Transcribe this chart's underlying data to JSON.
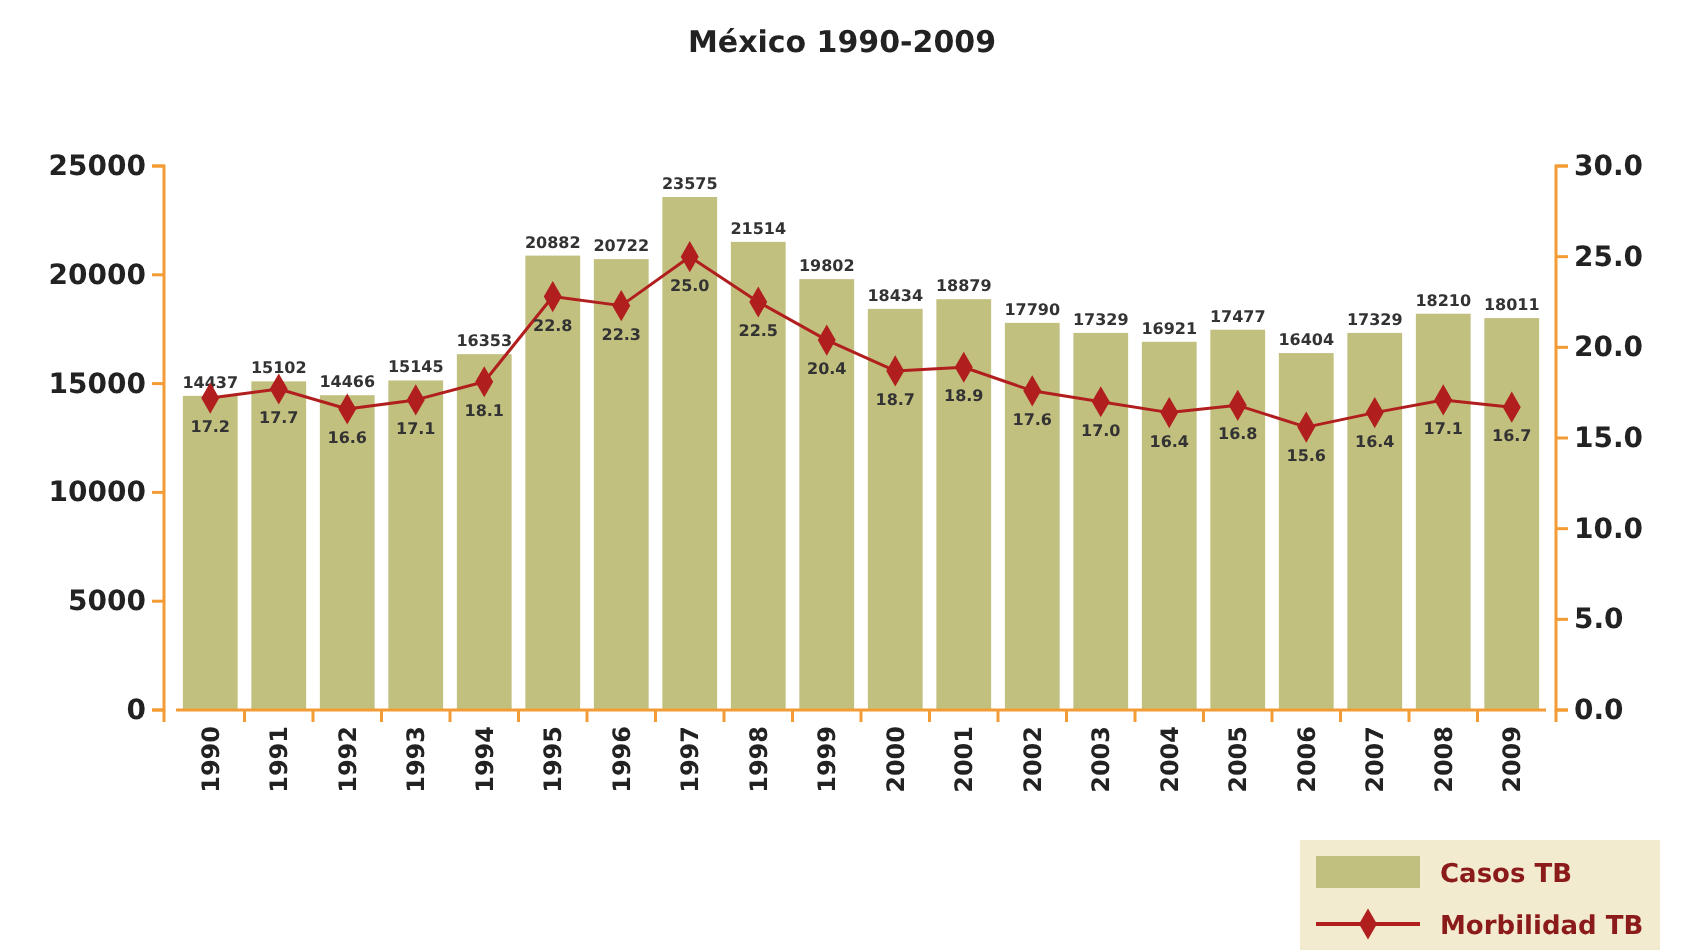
{
  "chart_data": {
    "type": "bar",
    "title": "México 1990-2009",
    "categories": [
      "1990",
      "1991",
      "1992",
      "1993",
      "1994",
      "1995",
      "1996",
      "1997",
      "1998",
      "1999",
      "2000",
      "2001",
      "2002",
      "2003",
      "2004",
      "2005",
      "2006",
      "2007",
      "2008",
      "2009"
    ],
    "series": [
      {
        "name": "Casos TB",
        "color": "#c2c07f",
        "values": [
          14437,
          15102,
          14466,
          15145,
          16353,
          20882,
          20722,
          23575,
          21514,
          19802,
          18434,
          18879,
          17790,
          17329,
          16921,
          17477,
          16404,
          17329,
          18210,
          18011
        ]
      },
      {
        "name": "Morbilidad TB",
        "type": "line",
        "axis": "y2",
        "color": "#b11e1e",
        "marker": "diamond",
        "values": [
          17.2,
          17.7,
          16.6,
          17.1,
          18.1,
          22.8,
          22.3,
          25.0,
          22.5,
          20.4,
          18.7,
          18.9,
          17.6,
          17.0,
          16.4,
          16.8,
          15.6,
          16.4,
          17.1,
          16.7
        ],
        "value_labels": [
          "17.2",
          "17.7",
          "16.6",
          "17.1",
          "18.1",
          "22.8",
          "22.3",
          "25.0",
          "22.5",
          "20.4",
          "18.7",
          "18.9",
          "17.6",
          "17.0",
          "16.4",
          "16.8",
          "15.6",
          "16.4",
          "17.1",
          "16.7"
        ]
      }
    ],
    "ylim": [
      0,
      25000
    ],
    "yticks": [
      0,
      5000,
      10000,
      15000,
      20000,
      25000
    ],
    "y2lim": [
      0,
      30
    ],
    "y2ticks": [
      {
        "value": 0,
        "label": "0.0"
      },
      {
        "value": 5,
        "label": "5.0"
      },
      {
        "value": 10,
        "label": "10.0"
      },
      {
        "value": 15,
        "label": "15.0"
      },
      {
        "value": 20,
        "label": "20.0"
      },
      {
        "value": 25,
        "label": "25.0"
      },
      {
        "value": 30,
        "label": "30.0"
      }
    ],
    "data_labels": true,
    "legend": "bottom right",
    "grid": false
  }
}
